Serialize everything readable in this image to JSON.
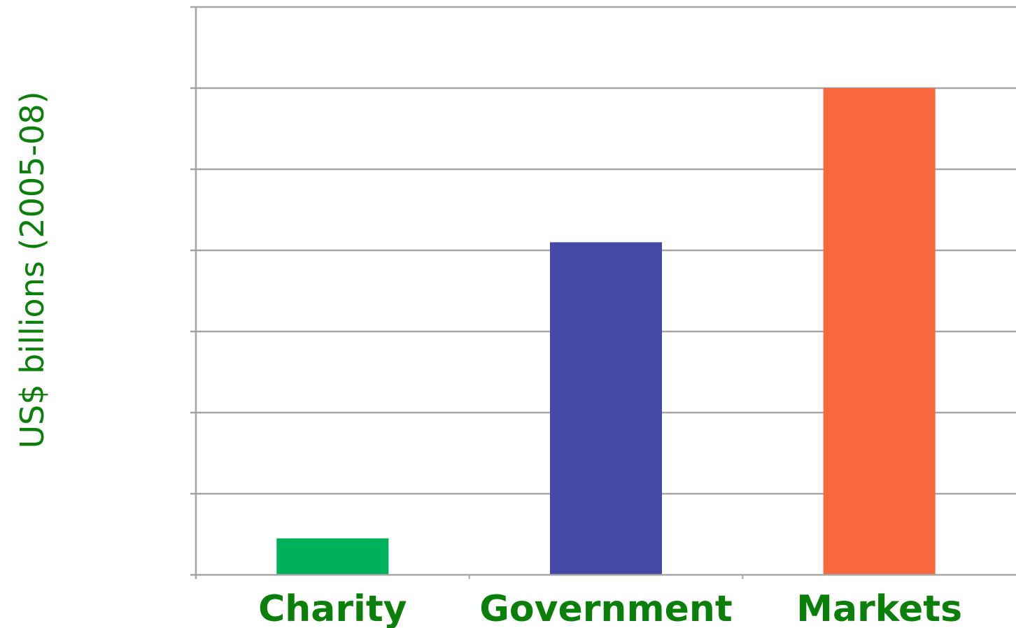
{
  "chart_data": {
    "type": "bar",
    "categories": [
      "Charity",
      "Government",
      "Markets"
    ],
    "values": [
      0.45,
      4.1,
      6.0
    ],
    "colors": [
      "#00B15C",
      "#4449A8",
      "#F8673E"
    ],
    "title": "",
    "xlabel": "",
    "ylabel": "US$ billions (2005-08)",
    "ylim": [
      0,
      7
    ],
    "ytick_step": 1,
    "y_tick_labels_shown": false,
    "grid": true,
    "legend": "none"
  },
  "style": {
    "text_color": "#0A7F0A",
    "axis_color": "#A6A6A6",
    "grid_color": "#A6A6A6"
  }
}
